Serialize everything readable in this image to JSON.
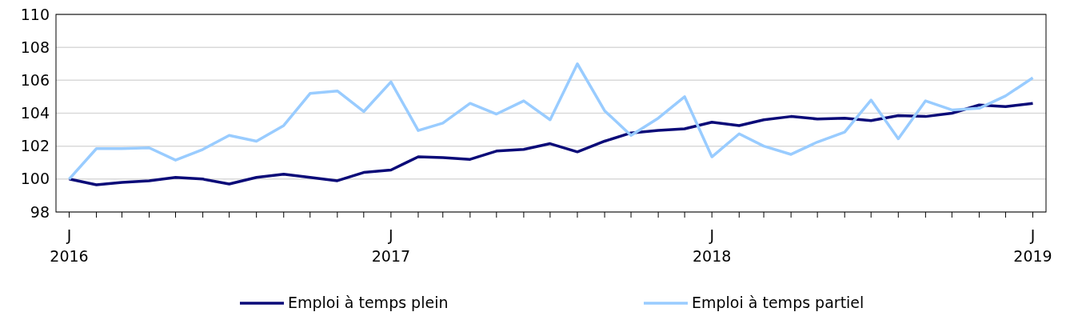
{
  "chart_data": {
    "type": "line",
    "x": [
      "2016-01",
      "2016-02",
      "2016-03",
      "2016-04",
      "2016-05",
      "2016-06",
      "2016-07",
      "2016-08",
      "2016-09",
      "2016-10",
      "2016-11",
      "2016-12",
      "2017-01",
      "2017-02",
      "2017-03",
      "2017-04",
      "2017-05",
      "2017-06",
      "2017-07",
      "2017-08",
      "2017-09",
      "2017-10",
      "2017-11",
      "2017-12",
      "2018-01",
      "2018-02",
      "2018-03",
      "2018-04",
      "2018-05",
      "2018-06",
      "2018-07",
      "2018-08",
      "2018-09",
      "2018-10",
      "2018-11",
      "2018-12",
      "2019-01"
    ],
    "series": [
      {
        "name": "Emploi à temps plein",
        "color": "#0a0a78",
        "values": [
          100,
          99.65,
          99.8,
          99.9,
          100.1,
          100,
          99.7,
          100.1,
          100.3,
          100.1,
          99.9,
          100.4,
          100.55,
          101.35,
          101.3,
          101.2,
          101.7,
          101.8,
          102.15,
          101.65,
          102.3,
          102.8,
          102.95,
          103.05,
          103.45,
          103.25,
          103.6,
          103.8,
          103.65,
          103.7,
          103.55,
          103.85,
          103.8,
          104,
          104.5,
          104.4,
          104.6
        ]
      },
      {
        "name": "Emploi à temps partiel",
        "color": "#99ccff",
        "values": [
          100,
          101.85,
          101.85,
          101.9,
          101.15,
          101.8,
          102.65,
          102.3,
          103.25,
          105.2,
          105.35,
          104.1,
          105.9,
          102.95,
          103.4,
          104.6,
          103.95,
          104.75,
          103.6,
          107,
          104.15,
          102.65,
          103.7,
          105,
          101.35,
          102.75,
          102,
          101.5,
          102.25,
          102.85,
          104.8,
          102.45,
          104.75,
          104.2,
          104.3,
          105.05,
          106.15
        ]
      }
    ],
    "xlim": [
      "2015-12-17",
      "2019-01-16"
    ],
    "xticks": [
      {
        "value": "2016-01",
        "label": "J 2016"
      },
      {
        "value": "2016-02",
        "label": null
      },
      {
        "value": "2016-03",
        "label": null
      },
      {
        "value": "2016-04",
        "label": null
      },
      {
        "value": "2016-05",
        "label": null
      },
      {
        "value": "2016-06",
        "label": null
      },
      {
        "value": "2016-07",
        "label": null
      },
      {
        "value": "2016-08",
        "label": null
      },
      {
        "value": "2016-09",
        "label": null
      },
      {
        "value": "2016-10",
        "label": null
      },
      {
        "value": "2016-11",
        "label": null
      },
      {
        "value": "2016-12",
        "label": null
      },
      {
        "value": "2017-01",
        "label": "J 2017"
      },
      {
        "value": "2017-02",
        "label": null
      },
      {
        "value": "2017-03",
        "label": null
      },
      {
        "value": "2017-04",
        "label": null
      },
      {
        "value": "2017-05",
        "label": null
      },
      {
        "value": "2017-06",
        "label": null
      },
      {
        "value": "2017-07",
        "label": null
      },
      {
        "value": "2017-08",
        "label": null
      },
      {
        "value": "2017-09",
        "label": null
      },
      {
        "value": "2017-10",
        "label": null
      },
      {
        "value": "2017-11",
        "label": null
      },
      {
        "value": "2017-12",
        "label": null
      },
      {
        "value": "2018-01",
        "label": "J 2018"
      },
      {
        "value": "2018-02",
        "label": null
      },
      {
        "value": "2018-03",
        "label": null
      },
      {
        "value": "2018-04",
        "label": null
      },
      {
        "value": "2018-05",
        "label": null
      },
      {
        "value": "2018-06",
        "label": null
      },
      {
        "value": "2018-07",
        "label": null
      },
      {
        "value": "2018-08",
        "label": null
      },
      {
        "value": "2018-09",
        "label": null
      },
      {
        "value": "2018-10",
        "label": null
      },
      {
        "value": "2018-11",
        "label": null
      },
      {
        "value": "2018-12",
        "label": null
      },
      {
        "value": "2019-01",
        "label": "J 2019"
      }
    ],
    "ylim": [
      98,
      110
    ],
    "yticks": [
      98,
      100,
      102,
      104,
      106,
      108,
      110
    ],
    "grid": "y",
    "legend": "bottom",
    "marker": "none",
    "line_style": "solid"
  }
}
